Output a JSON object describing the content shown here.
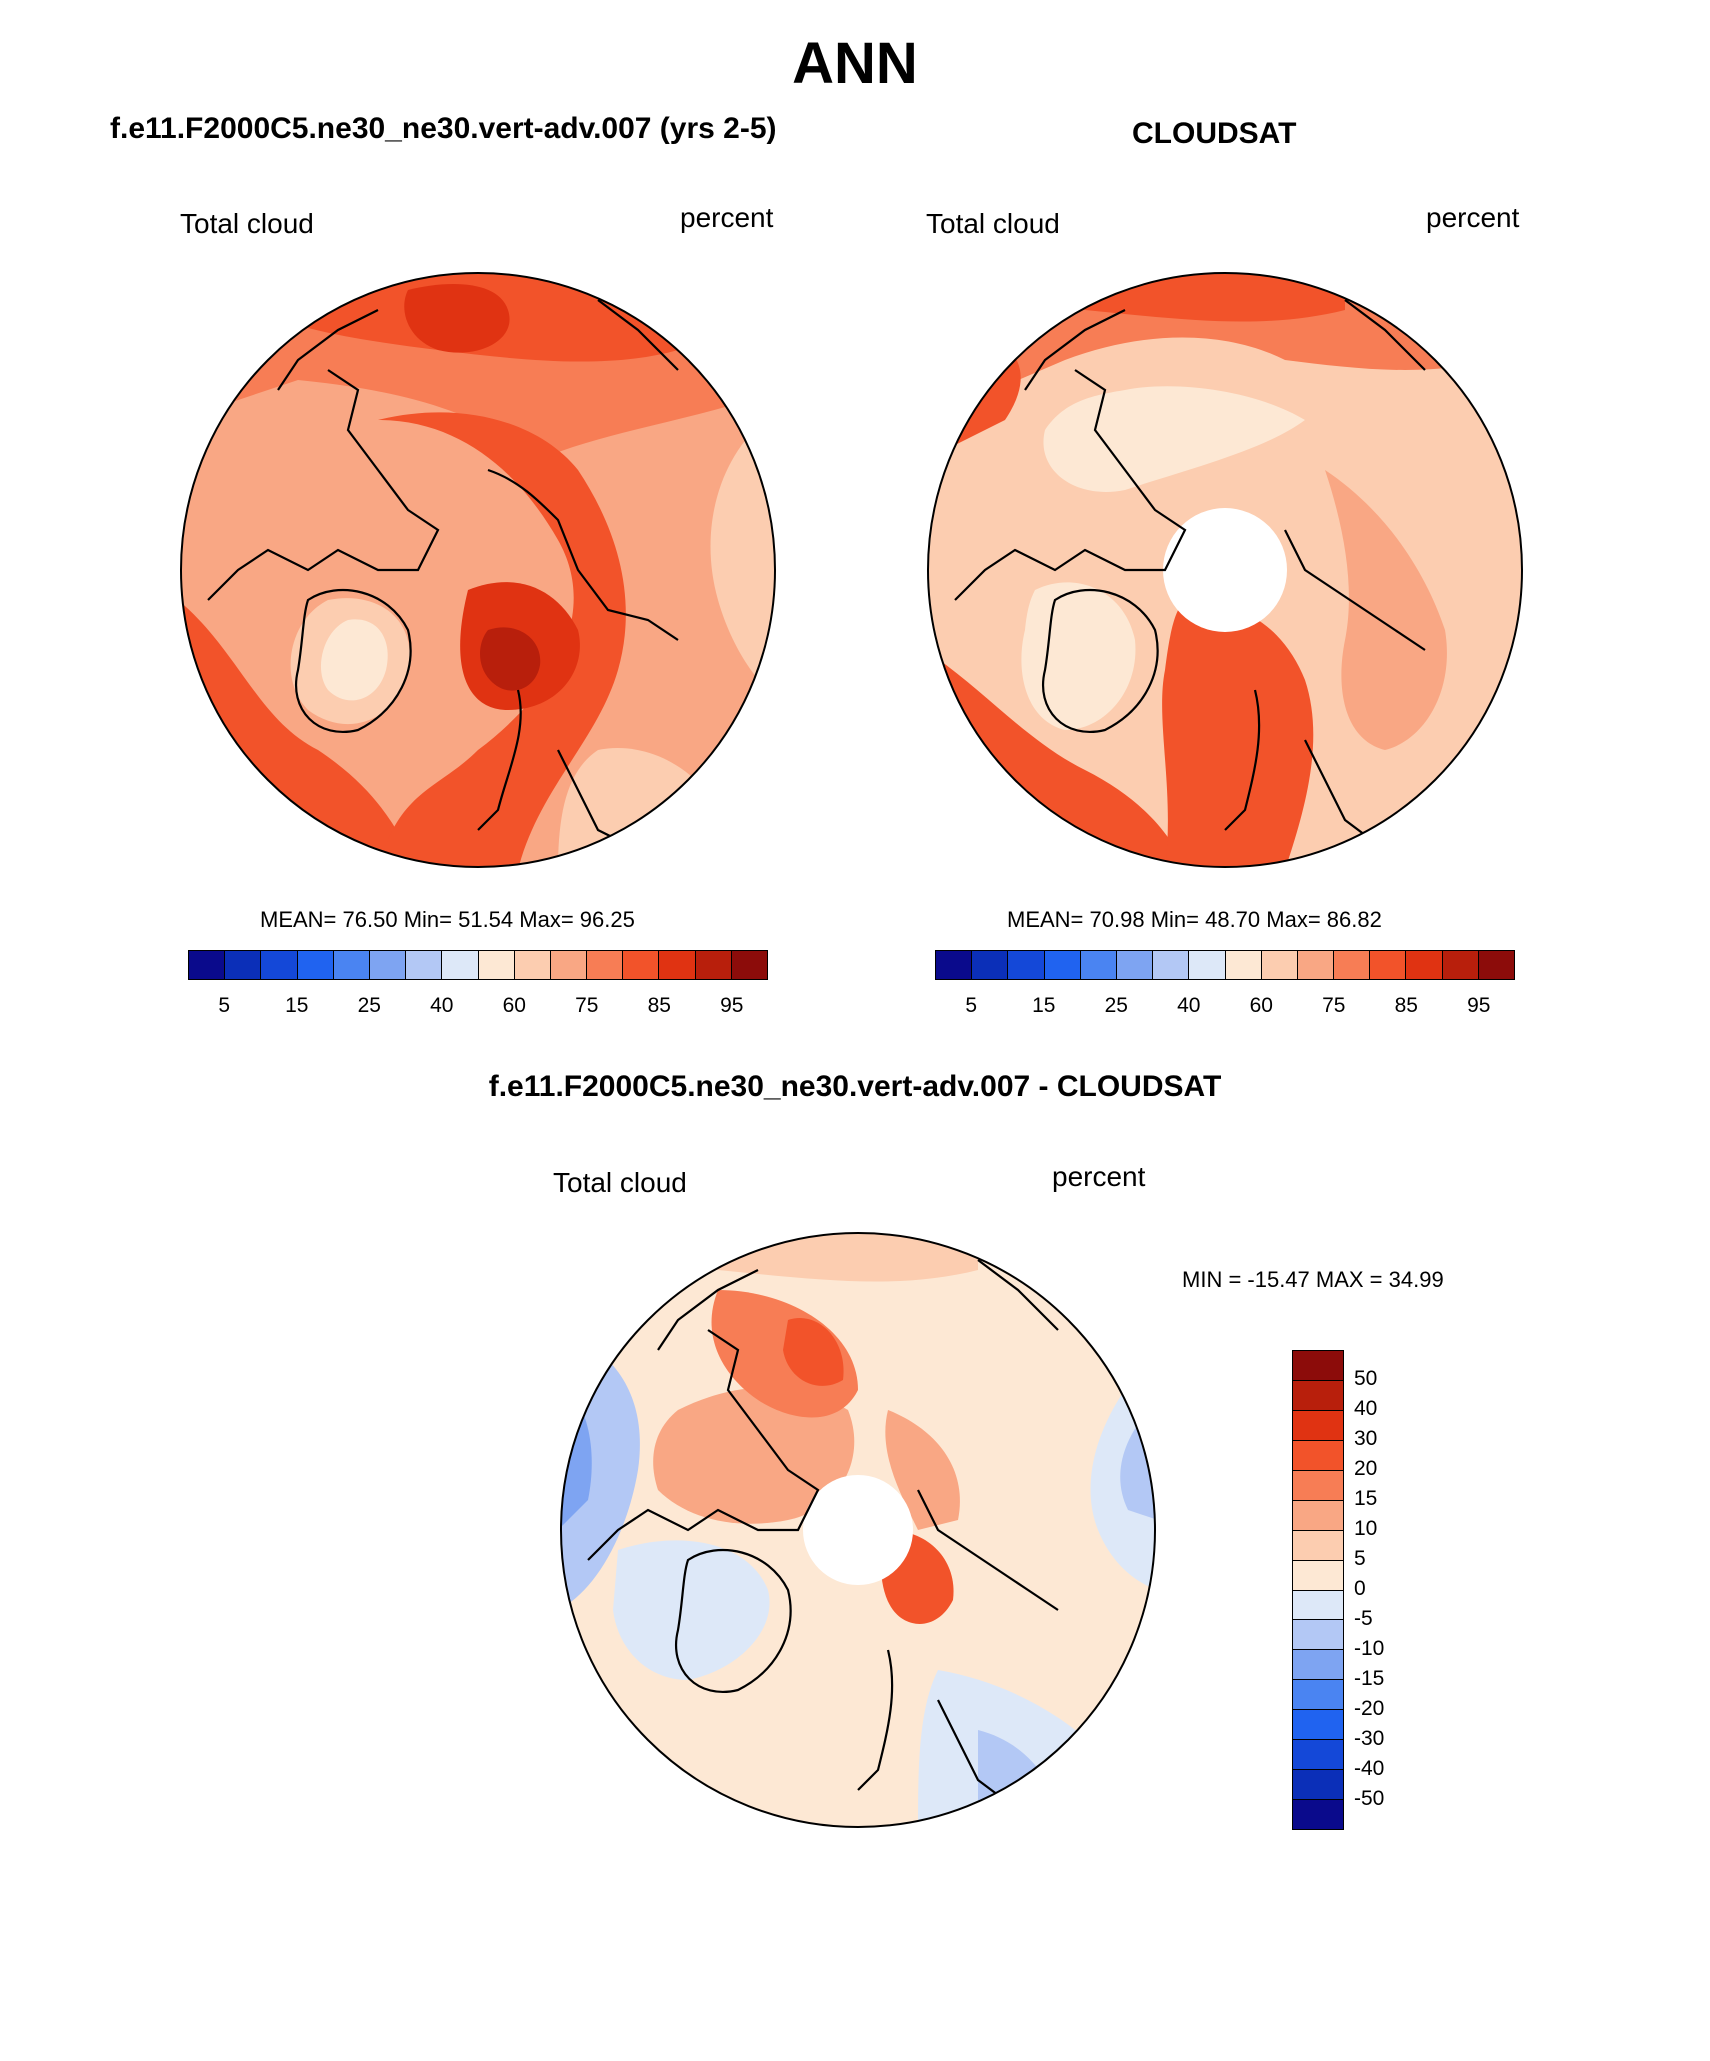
{
  "title": "ANN",
  "panels": [
    {
      "title": "f.e11.F2000C5.ne30_ne30.vert-adv.007 (yrs 2-5)",
      "variable": "Total cloud",
      "units": "percent",
      "stats": "MEAN=  76.50  Min=  51.54  Max=  96.25",
      "mean": 76.5,
      "min": 51.54,
      "max": 96.25
    },
    {
      "title": "CLOUDSAT",
      "variable": "Total cloud",
      "units": "percent",
      "stats": "MEAN=  70.98  Min=  48.70  Max=  86.82",
      "mean": 70.98,
      "min": 48.7,
      "max": 86.82
    },
    {
      "title": "f.e11.F2000C5.ne30_ne30.vert-adv.007 - CLOUDSAT",
      "variable": "Total cloud",
      "units": "percent",
      "stats": "MIN = -15.47 MAX =  34.99",
      "min": -15.47,
      "max": 34.99
    }
  ],
  "colorbar": {
    "ticks": [
      "5",
      "15",
      "25",
      "40",
      "60",
      "75",
      "85",
      "95"
    ],
    "colors": [
      "#0a0a8c",
      "#0b2fb8",
      "#1448d8",
      "#2063f0",
      "#4a84f2",
      "#7ea4f2",
      "#b3c8f5",
      "#dde8f8",
      "#fde8d4",
      "#fccdb0",
      "#f9a784",
      "#f77d55",
      "#f2532a",
      "#e03312",
      "#b81f0c",
      "#8c0c0a"
    ]
  },
  "diff_colorbar": {
    "labels": [
      "50",
      "40",
      "30",
      "20",
      "15",
      "10",
      "5",
      "0",
      "-5",
      "-10",
      "-15",
      "-20",
      "-30",
      "-40",
      "-50"
    ],
    "colors": [
      "#8c0c0a",
      "#b81f0c",
      "#e03312",
      "#f2532a",
      "#f77d55",
      "#f9a784",
      "#fccdb0",
      "#fde8d4",
      "#dde8f8",
      "#b3c8f5",
      "#7ea4f2",
      "#4a84f2",
      "#2063f0",
      "#1448d8",
      "#0b2fb8",
      "#0a0a8c"
    ]
  }
}
